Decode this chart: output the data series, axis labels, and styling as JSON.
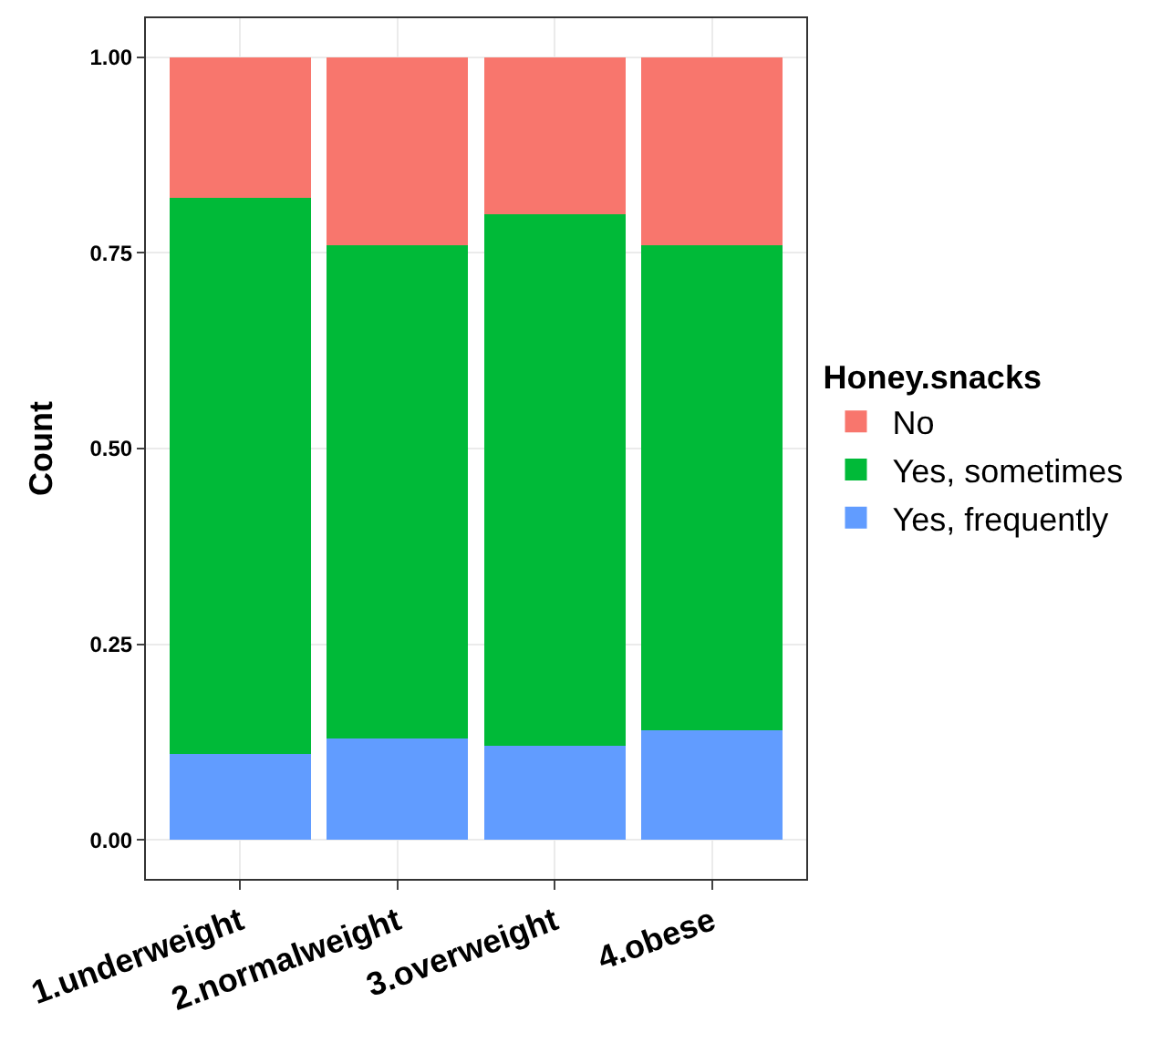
{
  "chart_data": {
    "type": "bar",
    "stacked": true,
    "ylabel": "Count",
    "legend_title": "Honey.snacks",
    "categories": [
      "1.underweight",
      "2.normalweight",
      "3.overweight",
      "4.obese"
    ],
    "series": [
      {
        "name": "Yes, frequently",
        "color": "#619cff",
        "values": [
          0.11,
          0.13,
          0.12,
          0.14
        ]
      },
      {
        "name": "Yes, sometimes",
        "color": "#00ba38",
        "values": [
          0.71,
          0.63,
          0.68,
          0.62
        ]
      },
      {
        "name": "No",
        "color": "#f8766d",
        "values": [
          0.18,
          0.24,
          0.2,
          0.24
        ]
      }
    ],
    "ylim": [
      -0.05,
      1.05
    ],
    "yticks": [
      {
        "value": 0,
        "label": "0.00"
      },
      {
        "value": 0.25,
        "label": "0.25"
      },
      {
        "value": 0.5,
        "label": "0.50"
      },
      {
        "value": 0.75,
        "label": "0.75"
      },
      {
        "value": 1,
        "label": "1.00"
      }
    ],
    "grid": true,
    "legend": "right"
  }
}
